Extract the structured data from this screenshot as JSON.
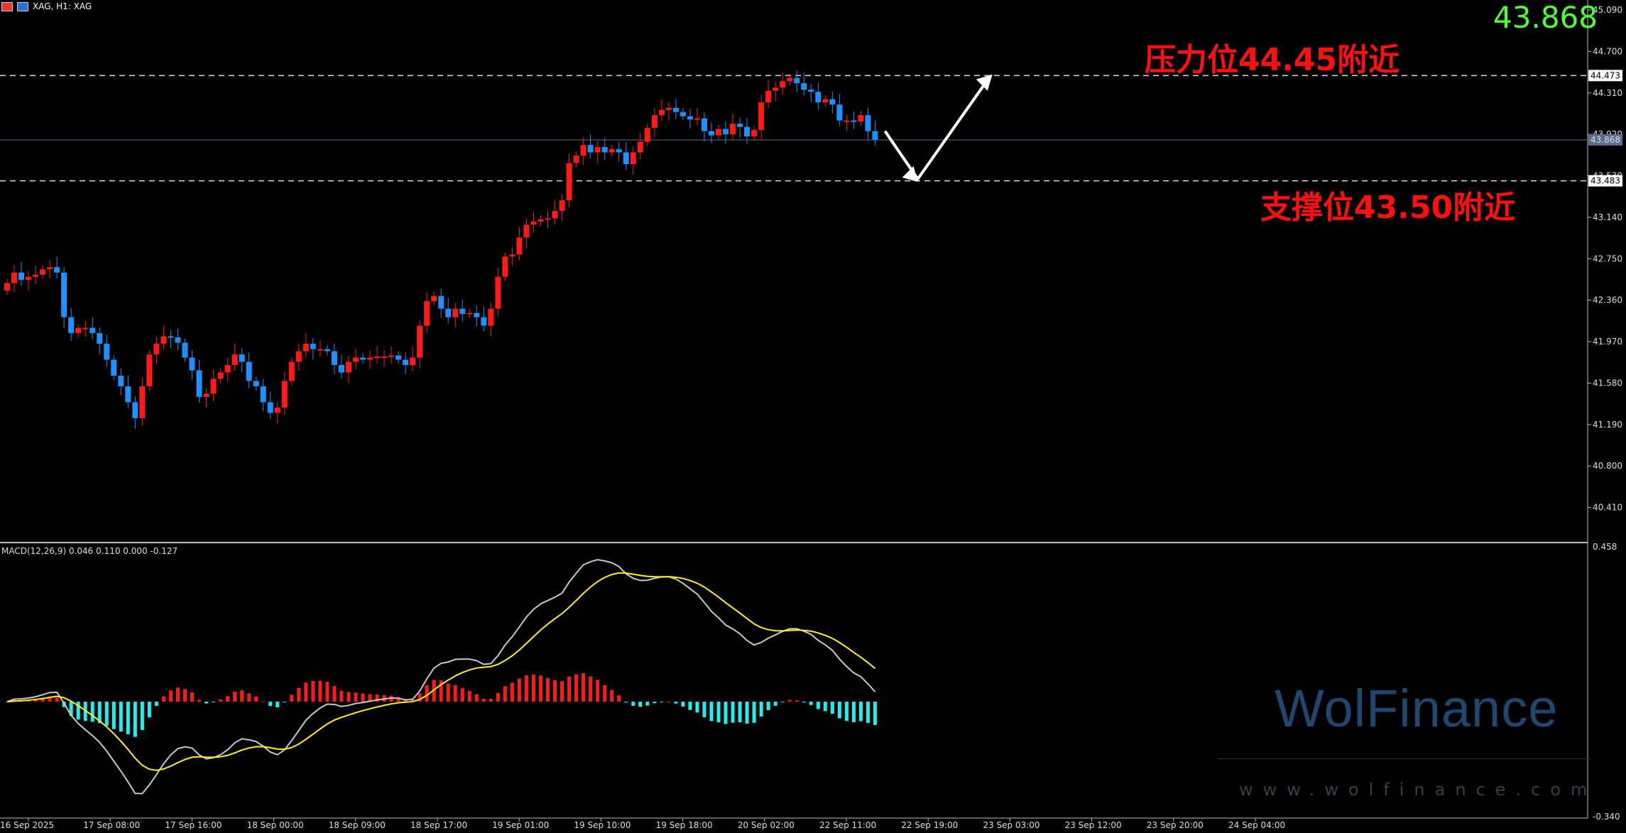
{
  "header": {
    "symbol_label": "XAG, H1:  XAG"
  },
  "current_price_big": "43.868",
  "annotations": {
    "resistance_prefix": "压力位",
    "resistance_value": "44.45",
    "resistance_suffix": "附近",
    "support_prefix": "支撑位",
    "support_value": "43.50",
    "support_suffix": "附近"
  },
  "macd": {
    "label": "MACD(12,26,9) 0.046 0.110 0.000 -0.127",
    "scale_top": "0.458",
    "scale_bottom": "-0.340"
  },
  "watermark": {
    "brand": "WolFinance",
    "url": "www.wolfinance.com"
  },
  "colors": {
    "bull": "#ff1a1a",
    "bear": "#1e90ff",
    "signal": "#ffee22",
    "macd_line": "#c8c8c8",
    "hist_pos": "#ff1a1a",
    "hist_neg": "#22eeee",
    "current_price": "#4dff33"
  },
  "chart_data": {
    "type": "candlestick",
    "symbol": "XAG",
    "timeframe": "H1",
    "ylim": [
      40.0,
      45.09
    ],
    "y_ticks": [
      "45.090",
      "44.700",
      "44.310",
      "43.920",
      "43.530",
      "43.140",
      "42.750",
      "42.360",
      "41.970",
      "41.580",
      "41.190",
      "40.800",
      "40.410"
    ],
    "x_ticks": [
      "16 Sep 2025",
      "17 Sep 08:00",
      "17 Sep 16:00",
      "18 Sep 00:00",
      "18 Sep 09:00",
      "18 Sep 17:00",
      "19 Sep 01:00",
      "19 Sep 10:00",
      "19 Sep 18:00",
      "20 Sep 02:00",
      "22 Sep 11:00",
      "22 Sep 19:00",
      "23 Sep 03:00",
      "23 Sep 12:00",
      "23 Sep 20:00",
      "24 Sep 04:00"
    ],
    "levels": [
      {
        "value": 44.473,
        "label": "44.473",
        "style": "dashed"
      },
      {
        "value": 43.483,
        "label": "43.483",
        "style": "dashed"
      },
      {
        "value": 43.868,
        "label": "43.868",
        "style": "solid"
      }
    ],
    "closes": [
      42.52,
      42.62,
      42.55,
      42.58,
      42.6,
      42.65,
      42.67,
      42.62,
      42.2,
      42.05,
      42.1,
      42.1,
      42.05,
      41.95,
      41.8,
      41.65,
      41.55,
      41.4,
      41.25,
      41.55,
      41.85,
      41.95,
      42.02,
      42.01,
      41.96,
      41.82,
      41.7,
      41.45,
      41.48,
      41.62,
      41.68,
      41.75,
      41.85,
      41.78,
      41.6,
      41.55,
      41.4,
      41.3,
      41.35,
      41.6,
      41.78,
      41.88,
      41.95,
      41.9,
      41.9,
      41.88,
      41.75,
      41.68,
      41.78,
      41.82,
      41.8,
      41.82,
      41.83,
      41.83,
      41.84,
      41.8,
      41.75,
      41.82,
      42.12,
      42.35,
      42.4,
      42.28,
      42.2,
      42.28,
      42.23,
      42.24,
      42.2,
      42.12,
      42.28,
      42.58,
      42.77,
      42.79,
      42.95,
      43.07,
      43.1,
      43.12,
      43.13,
      43.2,
      43.3,
      43.65,
      43.72,
      43.82,
      43.75,
      43.8,
      43.75,
      43.78,
      43.75,
      43.64,
      43.75,
      43.85,
      43.98,
      44.1,
      44.15,
      44.17,
      44.13,
      44.09,
      44.06,
      44.07,
      43.95,
      43.91,
      43.97,
      43.92,
      44.02,
      43.99,
      43.9,
      43.96,
      44.22,
      44.33,
      44.36,
      44.42,
      44.45,
      44.4,
      44.34,
      44.32,
      44.22,
      44.25,
      44.2,
      44.05,
      44.05,
      44.04,
      44.1,
      43.95,
      43.87
    ],
    "macd_hist_pos_negative_split": "mixed",
    "annotated_path": [
      {
        "note": "pullback to support",
        "value": 43.5
      },
      {
        "note": "rebound to resistance",
        "value": 44.45
      }
    ]
  }
}
